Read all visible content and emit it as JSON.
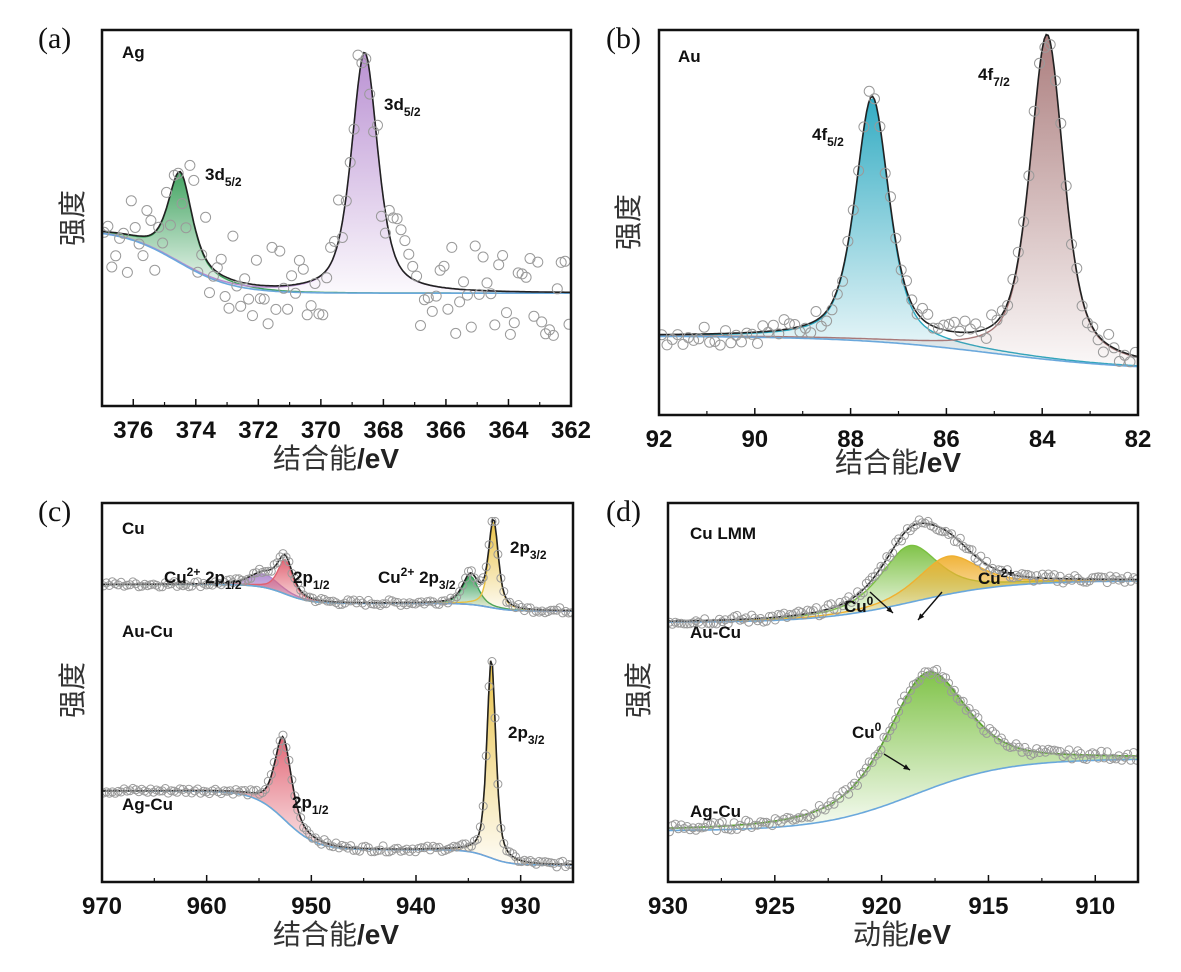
{
  "figure": {
    "y_axis_label": "强度",
    "binding_energy_label": "结合能/eV",
    "kinetic_energy_label": "动能/eV"
  },
  "chart_data": [
    {
      "id": "a",
      "type": "line",
      "panel_label": "(a)",
      "title": "Ag",
      "xlabel": "结合能/eV",
      "ylabel": "强度",
      "xlim": [
        377,
        362
      ],
      "ylim": [
        0,
        1
      ],
      "xticks": [
        376,
        374,
        372,
        370,
        368,
        366,
        364,
        362
      ],
      "minor_ticks": true,
      "grid": false,
      "traces": [
        {
          "name": "Ag",
          "background": {
            "left": 0.47,
            "right": 0.3,
            "step_center": 374.6,
            "step_width": 0.9,
            "floor": 0.28
          },
          "peaks": [
            {
              "label": "3d5/2",
              "label_main": "3d",
              "label_sub": "5/2",
              "center": 374.5,
              "height": 0.24,
              "width": 0.45,
              "color": "#3aa05a"
            },
            {
              "label": "3d5/2",
              "label_main": "3d",
              "label_sub": "5/2",
              "center": 368.6,
              "height": 0.64,
              "width": 0.5,
              "color": "#b68bd0"
            }
          ],
          "envelope_color": "#222222",
          "background_color": "#6aa8dc",
          "scatter_noise": 0.12
        }
      ]
    },
    {
      "id": "b",
      "type": "line",
      "panel_label": "(b)",
      "title": "Au",
      "xlabel": "结合能/eV",
      "ylabel": "强度",
      "xlim": [
        92,
        82
      ],
      "ylim": [
        0,
        1
      ],
      "xticks": [
        92,
        90,
        88,
        86,
        84,
        82
      ],
      "minor_ticks": true,
      "grid": false,
      "traces": [
        {
          "name": "Au",
          "background": {
            "left": 0.205,
            "right": 0.115,
            "step_center": 85.0,
            "step_width": 1.5,
            "floor": 0.115
          },
          "peaks": [
            {
              "label": "4f5/2",
              "label_main": "4f",
              "label_sub": "5/2",
              "center": 87.55,
              "height": 0.63,
              "width": 0.42,
              "color": "#2aa8c0"
            },
            {
              "label": "4f7/2",
              "label_main": "4f",
              "label_sub": "7/2",
              "center": 83.9,
              "height": 0.84,
              "width": 0.42,
              "color": "#a87878"
            }
          ],
          "envelope_color": "#222222",
          "background_color": "#6aa8dc",
          "scatter_noise": 0.03
        }
      ]
    },
    {
      "id": "c",
      "type": "line",
      "panel_label": "(c)",
      "title": "Cu",
      "xlabel": "结合能/eV",
      "ylabel": "强度",
      "xlim": [
        970,
        925
      ],
      "ylim": [
        0,
        1
      ],
      "xticks": [
        970,
        960,
        950,
        940,
        930
      ],
      "minor_ticks": true,
      "grid": false,
      "traces": [
        {
          "name": "Au-Cu",
          "background": {
            "left": 0.785,
            "right": 0.735,
            "step_center": 952.5,
            "step_width": 1.2,
            "floor": 0.735,
            "step2_center": 933.0,
            "step2_width": 1.0,
            "step2_drop": 0.02
          },
          "peaks": [
            {
              "label": "Cu2+ 2p1/2",
              "label_main": "Cu",
              "label_sup": "2+",
              "label_tail": " 2p",
              "label_sub": "1/2",
              "center": 954.5,
              "height": 0.035,
              "width": 1.6,
              "color": "#b08ad0"
            },
            {
              "label": "2p1/2",
              "label_main": "2p",
              "label_sub": "1/2",
              "center": 952.5,
              "height": 0.09,
              "width": 0.85,
              "color": "#e06070"
            },
            {
              "label": "Cu2+ 2p3/2",
              "label_main": "Cu",
              "label_sup": "2+",
              "label_tail": " 2p",
              "label_sub": "3/2",
              "center": 934.8,
              "height": 0.075,
              "width": 0.9,
              "color": "#3aa05a"
            },
            {
              "label": "2p3/2",
              "label_main": "2p",
              "label_sub": "3/2",
              "center": 932.6,
              "height": 0.23,
              "width": 0.55,
              "color": "#e8c040"
            }
          ],
          "envelope_color": "#222222",
          "background_color": "#6aa8dc",
          "scatter_noise": 0.008
        },
        {
          "name": "Ag-Cu",
          "background": {
            "left": 0.24,
            "right": 0.085,
            "step_center": 952.5,
            "step_width": 1.5,
            "floor": 0.085,
            "step2_center": 933.0,
            "step2_width": 1.0,
            "step2_drop": 0.04
          },
          "peaks": [
            {
              "label": "2p1/2",
              "label_main": "2p",
              "label_sub": "1/2",
              "center": 952.7,
              "height": 0.215,
              "width": 0.95,
              "color": "#e06070"
            },
            {
              "label": "2p3/2",
              "label_main": "2p",
              "label_sub": "3/2",
              "center": 932.8,
              "height": 0.53,
              "width": 0.5,
              "color": "#e8c040"
            }
          ],
          "envelope_color": "#222222",
          "background_color": "#6aa8dc",
          "scatter_noise": 0.008
        }
      ]
    },
    {
      "id": "d",
      "type": "line",
      "panel_label": "(d)",
      "title": "Cu LMM",
      "xlabel": "动能/eV",
      "ylabel": "强度",
      "xlim": [
        930,
        908
      ],
      "ylim": [
        0,
        1
      ],
      "xticks": [
        930,
        925,
        920,
        915,
        910
      ],
      "minor_ticks": true,
      "grid": false,
      "traces": [
        {
          "name": "Au-Cu",
          "background": {
            "left": 0.685,
            "right": 0.795,
            "step_center": 918.5,
            "step_width": 2.2,
            "floor": 0.685
          },
          "peaks": [
            {
              "label": "Cu0",
              "label_main": "Cu",
              "label_sup": "0",
              "center": 918.7,
              "height": 0.15,
              "width": 1.6,
              "color": "#7ac040"
            },
            {
              "label": "Cu2+",
              "label_main": "Cu",
              "label_sup": "2+",
              "center": 916.9,
              "height": 0.1,
              "width": 1.7,
              "color": "#f0b030"
            }
          ],
          "envelope_color": "#222222",
          "background_color": "#6aa8dc",
          "scatter_noise": 0.012
        },
        {
          "name": "Ag-Cu",
          "background": {
            "left": 0.135,
            "right": 0.325,
            "step_center": 918.5,
            "step_width": 2.2,
            "floor": 0.135
          },
          "peaks": [
            {
              "label": "Cu0",
              "label_main": "Cu",
              "label_sup": "0",
              "center": 917.9,
              "height": 0.31,
              "width": 2.2,
              "color": "#7ac040"
            }
          ],
          "envelope_color": "#5aa030",
          "background_color": "#6aa8dc",
          "scatter_noise": 0.012
        }
      ]
    }
  ]
}
